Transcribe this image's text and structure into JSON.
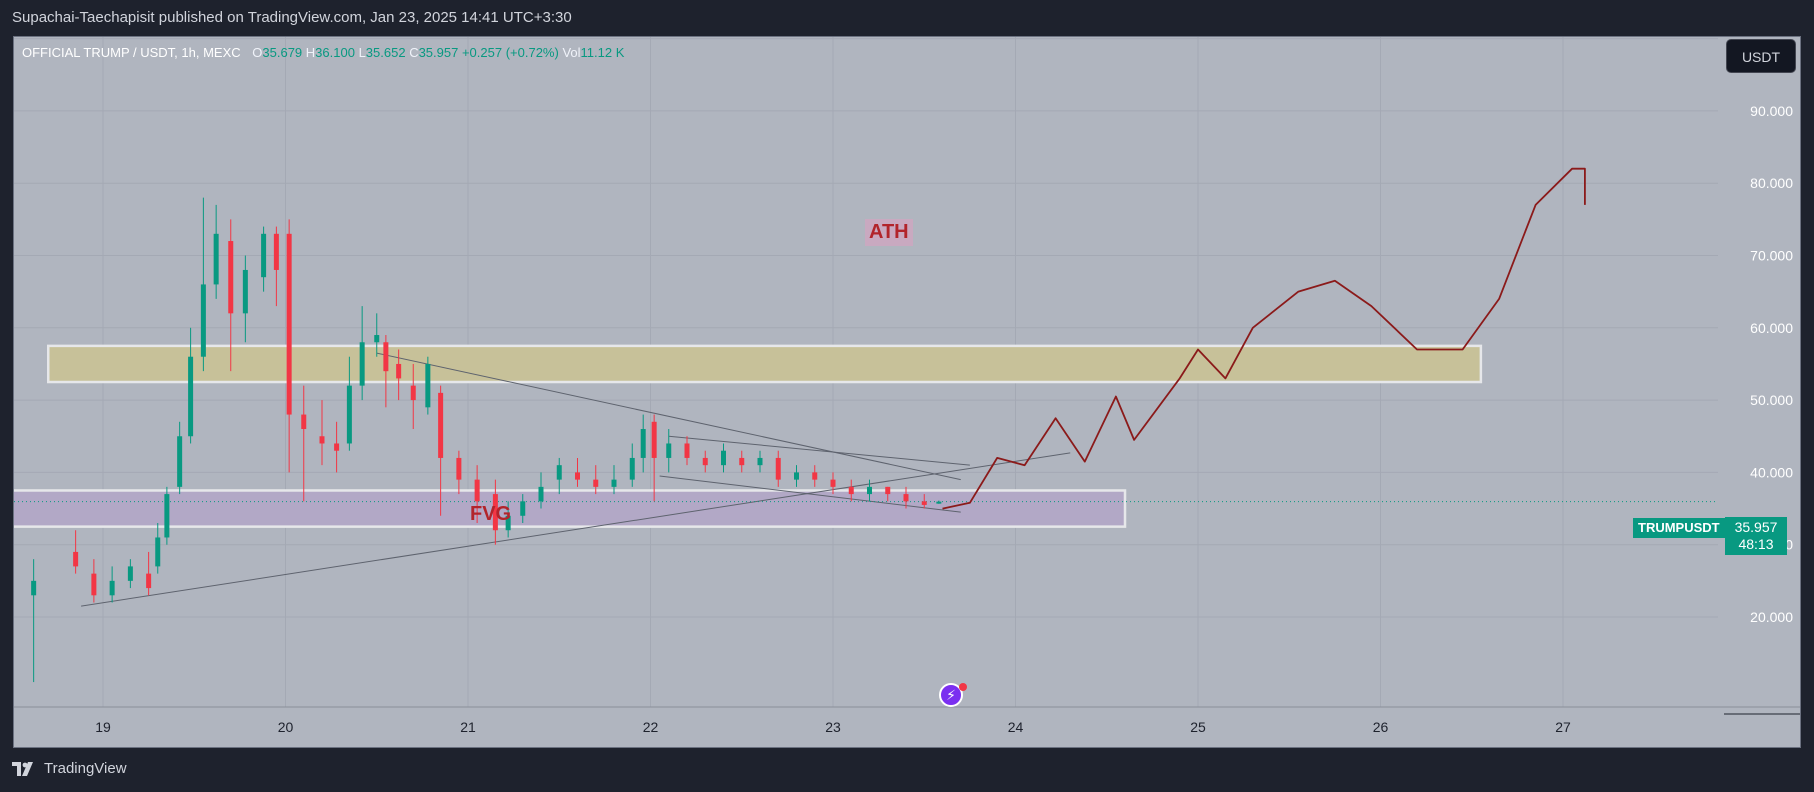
{
  "header": {
    "publisher_line": "Supachai-Taechapisit published on TradingView.com, Jan 23, 2025 14:41 UTC+3:30"
  },
  "legend": {
    "symbol": "OFFICIAL TRUMP / USDT, 1h, MEXC",
    "o_label": "O",
    "o": "35.679",
    "h_label": "H",
    "h": "36.100",
    "l_label": "L",
    "l": "35.652",
    "c_label": "C",
    "c": "35.957",
    "change": "+0.257 (+0.72%)",
    "vol_label": "Vol",
    "vol": "11.12 K"
  },
  "currency_button": "USDT",
  "price_badge": {
    "symbol": "TRUMPUSDT",
    "price": "35.957",
    "countdown": "48:13"
  },
  "annotations": {
    "ath": "ATH",
    "fvg": "FVG"
  },
  "footer": {
    "brand": "TradingView"
  },
  "colors": {
    "up": "#089981",
    "down": "#f23645",
    "background": "#b0b5bf",
    "zone_yellow": "#c7c199",
    "zone_purple": "#b2a8c6",
    "forecast": "#8b1a1a"
  },
  "chart_data": {
    "type": "candlestick",
    "x_axis": {
      "tick_labels": [
        "19",
        "20",
        "21",
        "22",
        "23",
        "24",
        "25",
        "26",
        "27"
      ],
      "range": [
        18.6,
        27.8
      ]
    },
    "y_axis": {
      "tick_labels": [
        "20.000",
        "30.000",
        "40.000",
        "50.000",
        "60.000",
        "70.000",
        "80.000",
        "90.000"
      ],
      "range": [
        10,
        101
      ]
    },
    "grid": true,
    "last_price": 35.957,
    "candles": [
      {
        "t": 18.62,
        "o": 23,
        "c": 25,
        "h": 28,
        "l": 11
      },
      {
        "t": 18.85,
        "o": 29,
        "c": 27,
        "h": 32,
        "l": 26
      },
      {
        "t": 18.95,
        "o": 26,
        "c": 23,
        "h": 28,
        "l": 22
      },
      {
        "t": 19.05,
        "o": 23,
        "c": 25,
        "h": 27,
        "l": 22
      },
      {
        "t": 19.15,
        "o": 25,
        "c": 27,
        "h": 28,
        "l": 24
      },
      {
        "t": 19.25,
        "o": 26,
        "c": 24,
        "h": 29,
        "l": 23
      },
      {
        "t": 19.3,
        "o": 27,
        "c": 31,
        "h": 33,
        "l": 26
      },
      {
        "t": 19.35,
        "o": 31,
        "c": 37,
        "h": 38,
        "l": 30
      },
      {
        "t": 19.42,
        "o": 38,
        "c": 45,
        "h": 47,
        "l": 37
      },
      {
        "t": 19.48,
        "o": 45,
        "c": 56,
        "h": 60,
        "l": 44
      },
      {
        "t": 19.55,
        "o": 56,
        "c": 66,
        "h": 78,
        "l": 54
      },
      {
        "t": 19.62,
        "o": 66,
        "c": 73,
        "h": 77,
        "l": 64
      },
      {
        "t": 19.7,
        "o": 72,
        "c": 62,
        "h": 75,
        "l": 54
      },
      {
        "t": 19.78,
        "o": 62,
        "c": 68,
        "h": 70,
        "l": 58
      },
      {
        "t": 19.88,
        "o": 67,
        "c": 73,
        "h": 74,
        "l": 65
      },
      {
        "t": 19.95,
        "o": 73,
        "c": 68,
        "h": 74,
        "l": 63
      },
      {
        "t": 20.02,
        "o": 73,
        "c": 48,
        "h": 75,
        "l": 40
      },
      {
        "t": 20.1,
        "o": 48,
        "c": 46,
        "h": 52,
        "l": 36
      },
      {
        "t": 20.2,
        "o": 45,
        "c": 44,
        "h": 50,
        "l": 41
      },
      {
        "t": 20.28,
        "o": 44,
        "c": 43,
        "h": 47,
        "l": 40
      },
      {
        "t": 20.35,
        "o": 44,
        "c": 52,
        "h": 56,
        "l": 43
      },
      {
        "t": 20.42,
        "o": 52,
        "c": 58,
        "h": 63,
        "l": 50
      },
      {
        "t": 20.5,
        "o": 58,
        "c": 59,
        "h": 62,
        "l": 56
      },
      {
        "t": 20.55,
        "o": 58,
        "c": 54,
        "h": 59,
        "l": 49
      },
      {
        "t": 20.62,
        "o": 55,
        "c": 53,
        "h": 57,
        "l": 50
      },
      {
        "t": 20.7,
        "o": 52,
        "c": 50,
        "h": 55,
        "l": 46
      },
      {
        "t": 20.78,
        "o": 49,
        "c": 55,
        "h": 56,
        "l": 48
      },
      {
        "t": 20.85,
        "o": 51,
        "c": 42,
        "h": 52,
        "l": 34
      },
      {
        "t": 20.95,
        "o": 42,
        "c": 39,
        "h": 43,
        "l": 37
      },
      {
        "t": 21.05,
        "o": 39,
        "c": 36,
        "h": 41,
        "l": 33
      },
      {
        "t": 21.15,
        "o": 37,
        "c": 32,
        "h": 39,
        "l": 30
      },
      {
        "t": 21.22,
        "o": 32,
        "c": 34,
        "h": 36,
        "l": 31
      },
      {
        "t": 21.3,
        "o": 34,
        "c": 36,
        "h": 37,
        "l": 33
      },
      {
        "t": 21.4,
        "o": 36,
        "c": 38,
        "h": 40,
        "l": 35
      },
      {
        "t": 21.5,
        "o": 39,
        "c": 41,
        "h": 42,
        "l": 37
      },
      {
        "t": 21.6,
        "o": 40,
        "c": 39,
        "h": 42,
        "l": 38
      },
      {
        "t": 21.7,
        "o": 39,
        "c": 38,
        "h": 41,
        "l": 37
      },
      {
        "t": 21.8,
        "o": 38,
        "c": 39,
        "h": 41,
        "l": 37
      },
      {
        "t": 21.9,
        "o": 39,
        "c": 42,
        "h": 44,
        "l": 38
      },
      {
        "t": 21.96,
        "o": 42,
        "c": 46,
        "h": 48,
        "l": 40
      },
      {
        "t": 22.02,
        "o": 47,
        "c": 42,
        "h": 48,
        "l": 36
      },
      {
        "t": 22.1,
        "o": 42,
        "c": 44,
        "h": 46,
        "l": 40
      },
      {
        "t": 22.2,
        "o": 44,
        "c": 42,
        "h": 45,
        "l": 41
      },
      {
        "t": 22.3,
        "o": 42,
        "c": 41,
        "h": 43,
        "l": 40
      },
      {
        "t": 22.4,
        "o": 41,
        "c": 43,
        "h": 44,
        "l": 40
      },
      {
        "t": 22.5,
        "o": 42,
        "c": 41,
        "h": 43,
        "l": 40
      },
      {
        "t": 22.6,
        "o": 41,
        "c": 42,
        "h": 43,
        "l": 40
      },
      {
        "t": 22.7,
        "o": 42,
        "c": 39,
        "h": 43,
        "l": 38
      },
      {
        "t": 22.8,
        "o": 39,
        "c": 40,
        "h": 41,
        "l": 38
      },
      {
        "t": 22.9,
        "o": 40,
        "c": 39,
        "h": 41,
        "l": 38
      },
      {
        "t": 23.0,
        "o": 39,
        "c": 38,
        "h": 40,
        "l": 37
      },
      {
        "t": 23.1,
        "o": 38,
        "c": 37,
        "h": 39,
        "l": 36
      },
      {
        "t": 23.2,
        "o": 37,
        "c": 38,
        "h": 39,
        "l": 36
      },
      {
        "t": 23.3,
        "o": 38,
        "c": 37,
        "h": 38,
        "l": 36
      },
      {
        "t": 23.4,
        "o": 37,
        "c": 36,
        "h": 38,
        "l": 35
      },
      {
        "t": 23.5,
        "o": 36,
        "c": 35.5,
        "h": 37,
        "l": 35
      },
      {
        "t": 23.58,
        "o": 35.679,
        "c": 35.957,
        "h": 36.1,
        "l": 35.652
      }
    ],
    "zones": [
      {
        "name": "supply",
        "t_start": 18.7,
        "t_end": 26.55,
        "y_low": 52.5,
        "y_high": 57.5
      },
      {
        "name": "fvg",
        "t_start": 18.25,
        "t_end": 24.6,
        "y_low": 32.5,
        "y_high": 37.5
      }
    ],
    "trend_lines": [
      {
        "t1": 18.88,
        "y1": 21.5,
        "t2": 24.3,
        "y2": 42.7
      },
      {
        "t1": 20.5,
        "y1": 56.5,
        "t2": 23.7,
        "y2": 39
      },
      {
        "t1": 22.1,
        "y1": 45,
        "t2": 23.75,
        "y2": 41
      },
      {
        "t1": 22.05,
        "y1": 39.5,
        "t2": 23.7,
        "y2": 34.5
      }
    ],
    "forecast_path": [
      [
        23.6,
        35
      ],
      [
        23.75,
        35.8
      ],
      [
        23.9,
        42
      ],
      [
        24.05,
        41
      ],
      [
        24.22,
        47.5
      ],
      [
        24.38,
        41.5
      ],
      [
        24.55,
        50.5
      ],
      [
        24.65,
        44.5
      ],
      [
        24.9,
        53
      ],
      [
        25.0,
        57
      ],
      [
        25.15,
        53
      ],
      [
        25.3,
        60
      ],
      [
        25.55,
        65
      ],
      [
        25.75,
        66.5
      ],
      [
        25.95,
        63
      ],
      [
        26.2,
        57
      ],
      [
        26.45,
        57
      ],
      [
        26.65,
        64
      ],
      [
        26.85,
        77
      ],
      [
        27.05,
        82
      ],
      [
        27.12,
        82
      ],
      [
        27.12,
        77
      ]
    ]
  }
}
